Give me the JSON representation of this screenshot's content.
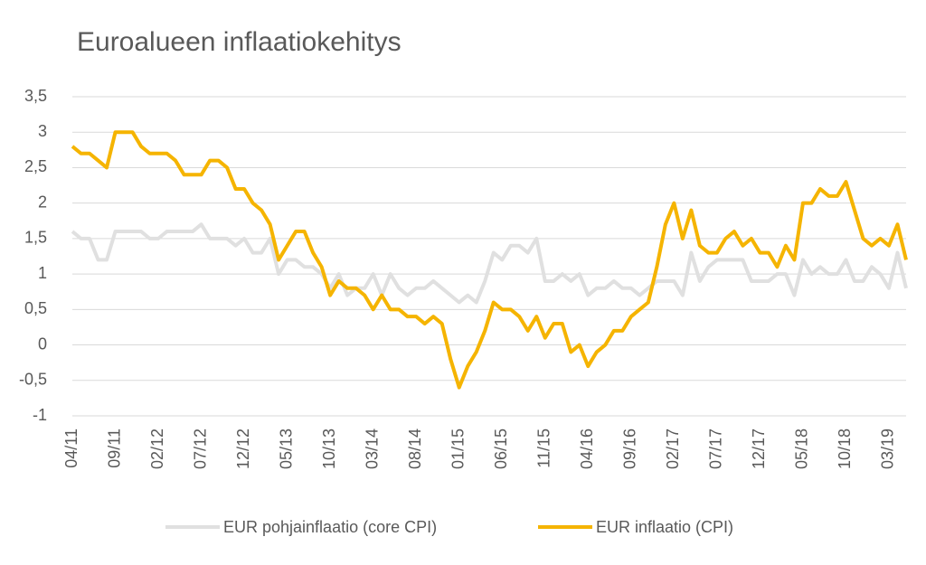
{
  "chart_data": {
    "type": "line",
    "title": "Euroalueen inflaatiokehitys",
    "categories": [
      "04/11",
      null,
      null,
      null,
      null,
      "09/11",
      null,
      null,
      null,
      null,
      "02/12",
      null,
      null,
      null,
      null,
      "07/12",
      null,
      null,
      null,
      null,
      "12/12",
      null,
      null,
      null,
      null,
      "05/13",
      null,
      null,
      null,
      null,
      "10/13",
      null,
      null,
      null,
      null,
      "03/14",
      null,
      null,
      null,
      null,
      "08/14",
      null,
      null,
      null,
      null,
      "01/15",
      null,
      null,
      null,
      null,
      "06/15",
      null,
      null,
      null,
      null,
      "11/15",
      null,
      null,
      null,
      null,
      "04/16",
      null,
      null,
      null,
      null,
      "09/16",
      null,
      null,
      null,
      null,
      "02/17",
      null,
      null,
      null,
      null,
      "07/17",
      null,
      null,
      null,
      null,
      "12/17",
      null,
      null,
      null,
      null,
      "05/18",
      null,
      null,
      null,
      null,
      "10/18",
      null,
      null,
      null,
      null,
      "03/19",
      null,
      null
    ],
    "series": [
      {
        "name": "EUR pohjainflaatio (core CPI)",
        "color": "#e0e0e0",
        "values": [
          1.6,
          1.5,
          1.5,
          1.2,
          1.2,
          1.6,
          1.6,
          1.6,
          1.6,
          1.5,
          1.5,
          1.6,
          1.6,
          1.6,
          1.6,
          1.7,
          1.5,
          1.5,
          1.5,
          1.4,
          1.5,
          1.3,
          1.3,
          1.5,
          1.0,
          1.2,
          1.2,
          1.1,
          1.1,
          1.0,
          0.8,
          1.0,
          0.7,
          0.8,
          0.8,
          1.0,
          0.7,
          1.0,
          0.8,
          0.7,
          0.8,
          0.8,
          0.9,
          0.8,
          0.7,
          0.6,
          0.7,
          0.6,
          0.9,
          1.3,
          1.2,
          1.4,
          1.4,
          1.3,
          1.5,
          0.9,
          0.9,
          1.0,
          0.9,
          1.0,
          0.7,
          0.8,
          0.8,
          0.9,
          0.8,
          0.8,
          0.7,
          0.8,
          0.9,
          0.9,
          0.9,
          0.7,
          1.3,
          0.9,
          1.1,
          1.2,
          1.2,
          1.2,
          1.2,
          0.9,
          0.9,
          0.9,
          1.0,
          1.0,
          0.7,
          1.2,
          1.0,
          1.1,
          1.0,
          1.0,
          1.2,
          0.9,
          0.9,
          1.1,
          1.0,
          0.8,
          1.3,
          0.8
        ]
      },
      {
        "name": "EUR inflaatio (CPI)",
        "color": "#f5b400",
        "values": [
          2.8,
          2.7,
          2.7,
          2.6,
          2.5,
          3.0,
          3.0,
          3.0,
          2.8,
          2.7,
          2.7,
          2.7,
          2.6,
          2.4,
          2.4,
          2.4,
          2.6,
          2.6,
          2.5,
          2.2,
          2.2,
          2.0,
          1.9,
          1.7,
          1.2,
          1.4,
          1.6,
          1.6,
          1.3,
          1.1,
          0.7,
          0.9,
          0.8,
          0.8,
          0.7,
          0.5,
          0.7,
          0.5,
          0.5,
          0.4,
          0.4,
          0.3,
          0.4,
          0.3,
          -0.2,
          -0.6,
          -0.3,
          -0.1,
          0.2,
          0.6,
          0.5,
          0.5,
          0.4,
          0.2,
          0.4,
          0.1,
          0.3,
          0.3,
          -0.1,
          0.0,
          -0.3,
          -0.1,
          0.0,
          0.2,
          0.2,
          0.4,
          0.5,
          0.6,
          1.1,
          1.7,
          2.0,
          1.5,
          1.9,
          1.4,
          1.3,
          1.3,
          1.5,
          1.6,
          1.4,
          1.5,
          1.3,
          1.3,
          1.1,
          1.4,
          1.2,
          2.0,
          2.0,
          2.2,
          2.1,
          2.1,
          2.3,
          1.9,
          1.5,
          1.4,
          1.5,
          1.4,
          1.7,
          1.2
        ]
      }
    ],
    "ylim": [
      -1,
      3.5
    ],
    "yticks": [
      {
        "value": -1,
        "label": "-1"
      },
      {
        "value": -0.5,
        "label": "-0,5"
      },
      0,
      {
        "value": 0.5,
        "label": "0,5"
      },
      1,
      {
        "value": 1.5,
        "label": "1,5"
      },
      2,
      {
        "value": 2.5,
        "label": "2,5"
      },
      3,
      {
        "value": 3.5,
        "label": "3,5"
      }
    ],
    "grid": true,
    "legend": "bottom"
  }
}
